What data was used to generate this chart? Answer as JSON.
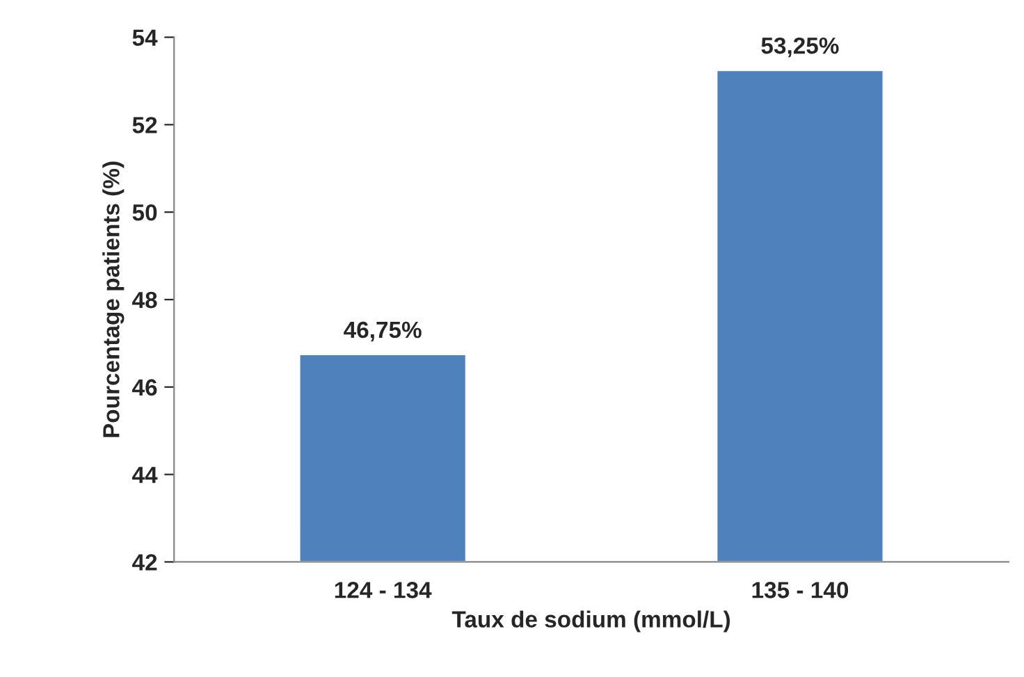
{
  "chart_data": {
    "type": "bar",
    "xlabel": "Taux de sodium (mmol/L)",
    "ylabel": "Pourcentage patients (%)",
    "categories": [
      "124 - 134",
      "135 - 140"
    ],
    "values": [
      46.75,
      53.25
    ],
    "value_labels": [
      "46,75%",
      "53,25%"
    ],
    "color": "#4f81bd",
    "ylim": [
      42,
      54
    ],
    "yticks": [
      42,
      44,
      46,
      48,
      50,
      52,
      54
    ],
    "grid": false
  }
}
